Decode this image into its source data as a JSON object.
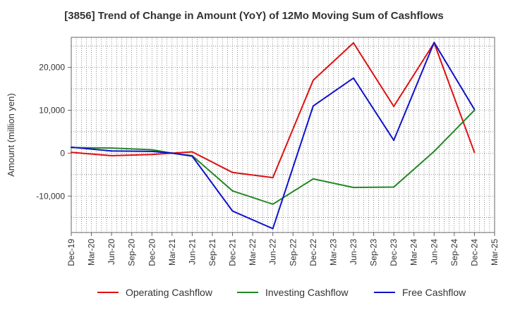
{
  "chart_data": {
    "type": "line",
    "title": "[3856]  Trend of Change in Amount (YoY) of 12Mo Moving Sum of Cashflows",
    "xlabel": "",
    "ylabel": "Amount (million yen)",
    "ylim": [
      -18500,
      27000
    ],
    "yticks": [
      20000,
      10000,
      0,
      -10000
    ],
    "ytick_labels": [
      "20,000",
      "10,000",
      "0",
      "-10,000"
    ],
    "categories": [
      "Dec-19",
      "Mar-20",
      "Jun-20",
      "Sep-20",
      "Dec-20",
      "Mar-21",
      "Jun-21",
      "Sep-21",
      "Dec-21",
      "Mar-22",
      "Jun-22",
      "Sep-22",
      "Dec-22",
      "Mar-23",
      "Jun-23",
      "Sep-23",
      "Dec-23",
      "Mar-24",
      "Jun-24",
      "Sep-24",
      "Dec-24",
      "Mar-25"
    ],
    "grid": true,
    "legend_position": "bottom",
    "series": [
      {
        "name": "Operating Cashflow",
        "color": "#dd1111",
        "x": [
          "Dec-19",
          "Jun-20",
          "Dec-20",
          "Mar-21",
          "Jun-21",
          "Dec-21",
          "Jun-22",
          "Dec-22",
          "Jun-23",
          "Dec-23",
          "Jun-24",
          "Dec-24"
        ],
        "values": [
          200,
          -600,
          -300,
          0,
          300,
          -4500,
          -5700,
          17000,
          25700,
          10900,
          25700,
          200
        ]
      },
      {
        "name": "Investing Cashflow",
        "color": "#228822",
        "x": [
          "Dec-19",
          "Jun-20",
          "Dec-20",
          "Mar-21",
          "Jun-21",
          "Dec-21",
          "Jun-22",
          "Dec-22",
          "Jun-23",
          "Dec-23",
          "Jun-24",
          "Dec-24"
        ],
        "values": [
          1300,
          1200,
          800,
          0,
          -600,
          -8800,
          -11900,
          -6000,
          -8000,
          -7900,
          400,
          10000
        ]
      },
      {
        "name": "Free Cashflow",
        "color": "#1111cc",
        "x": [
          "Dec-19",
          "Jun-20",
          "Dec-20",
          "Mar-21",
          "Jun-21",
          "Dec-21",
          "Jun-22",
          "Dec-22",
          "Jun-23",
          "Dec-23",
          "Jun-24",
          "Dec-24"
        ],
        "values": [
          1400,
          500,
          400,
          0,
          -700,
          -13500,
          -17600,
          11000,
          17500,
          3000,
          25800,
          10200
        ]
      }
    ]
  }
}
